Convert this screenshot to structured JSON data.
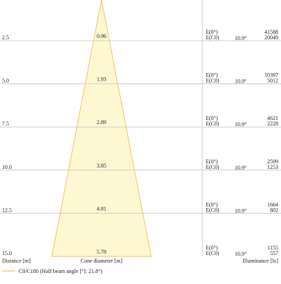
{
  "header": {
    "distance": "Distance [m]",
    "cone": "Cone diameter [m]",
    "illuminance": "Illuminance [lx]"
  },
  "legend": "C0/C180 (Half beam angle [°]: 21.8°)",
  "rows": [
    {
      "distance": "2.5",
      "diameter": "0.96",
      "e0_label": "E(0°)",
      "ec0_label": "E(C0)",
      "angle": "10.9°",
      "e0": "41588",
      "ec0": "20049"
    },
    {
      "distance": "5.0",
      "diameter": "1.93",
      "e0_label": "E(0°)",
      "ec0_label": "E(C0)",
      "angle": "10.9°",
      "e0": "10397",
      "ec0": "5012"
    },
    {
      "distance": "7.5",
      "diameter": "2.89",
      "e0_label": "E(0°)",
      "ec0_label": "E(C0)",
      "angle": "10.9°",
      "e0": "4621",
      "ec0": "2228"
    },
    {
      "distance": "10.0",
      "diameter": "3.85",
      "e0_label": "E(0°)",
      "ec0_label": "E(C0)",
      "angle": "10.9°",
      "e0": "2599",
      "ec0": "1253"
    },
    {
      "distance": "12.5",
      "diameter": "4.81",
      "e0_label": "E(0°)",
      "ec0_label": "E(C0)",
      "angle": "10.9°",
      "e0": "1664",
      "ec0": "802"
    },
    {
      "distance": "15.0",
      "diameter": "5.78",
      "e0_label": "E(0°)",
      "ec0_label": "E(C0)",
      "angle": "10.9°",
      "e0": "1155",
      "ec0": "557"
    }
  ]
}
